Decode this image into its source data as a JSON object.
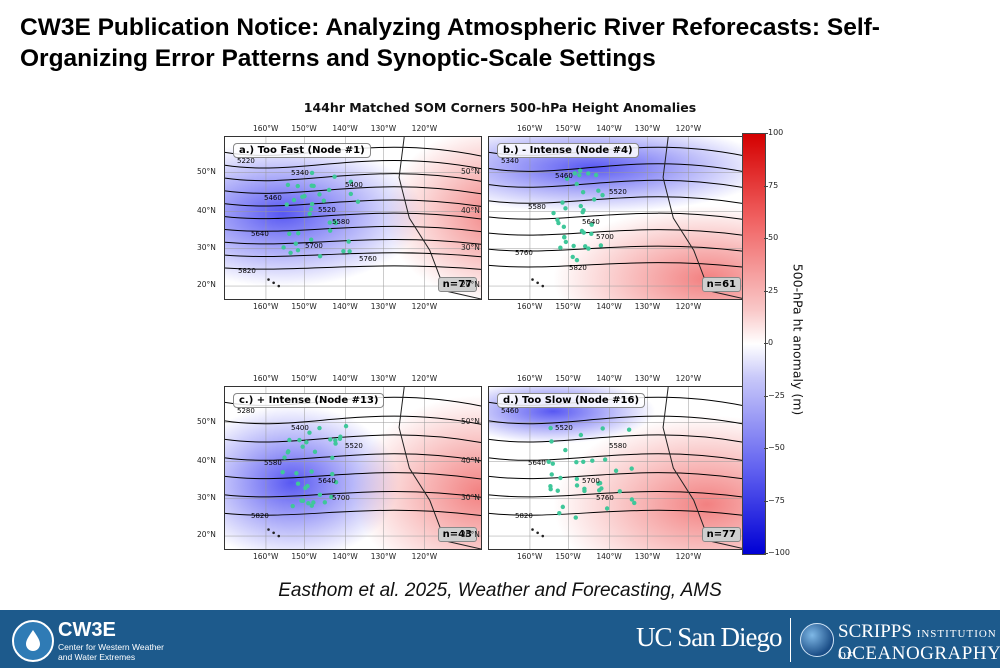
{
  "slide": {
    "title": "CW3E Publication Notice: Analyzing Atmospheric River Reforecasts: Self-Organizing Error Patterns and Synoptic-Scale Settings",
    "citation": "Easthom et al. 2025, Weather and Forecasting, AMS"
  },
  "figure": {
    "title": "144hr Matched SOM Corners 500-hPa Height Anomalies",
    "lon_ticks": [
      "160°W",
      "150°W",
      "140°W",
      "130°W",
      "120°W"
    ],
    "lat_ticks": [
      "50°N",
      "40°N",
      "30°N",
      "20°N"
    ],
    "panels": [
      {
        "label": "a.) Too Fast (Node #1)",
        "n": "n=77",
        "contour_labels": [
          "5220",
          "5340",
          "5400",
          "5460",
          "5520",
          "5580",
          "5640",
          "5700",
          "5760",
          "5820"
        ]
      },
      {
        "label": "b.) - Intense (Node #4)",
        "n": "n=61",
        "contour_labels": [
          "5340",
          "5460",
          "5520",
          "5580",
          "5640",
          "5700",
          "5760",
          "5820"
        ]
      },
      {
        "label": "c.) + Intense (Node #13)",
        "n": "n=43",
        "contour_labels": [
          "5280",
          "5400",
          "5520",
          "5580",
          "5640",
          "5700",
          "5820"
        ]
      },
      {
        "label": "d.) Too Slow (Node #16)",
        "n": "n=77",
        "contour_labels": [
          "5460",
          "5520",
          "5580",
          "5640",
          "5700",
          "5760",
          "5820"
        ]
      }
    ],
    "colorbar": {
      "label": "500-hPa ht anomaly (m)",
      "ticks": [
        "100",
        "75",
        "50",
        "25",
        "0",
        "−25",
        "−50",
        "−75",
        "−100"
      ],
      "range": [
        -100,
        100
      ],
      "colors": {
        "max": "#d40000",
        "mid": "#ffffff",
        "min": "#0000d4"
      }
    }
  },
  "footer": {
    "bg_color": "#1d5a8c",
    "cw3e_name": "CW3E",
    "cw3e_sub": "Center for Western Weather and Water Extremes",
    "ucsd": "UC San Diego",
    "scripps_line1": "SCRIPPS",
    "scripps_line1_small": "INSTITUTION OF",
    "scripps_line2": "OCEANOGRAPHY"
  }
}
